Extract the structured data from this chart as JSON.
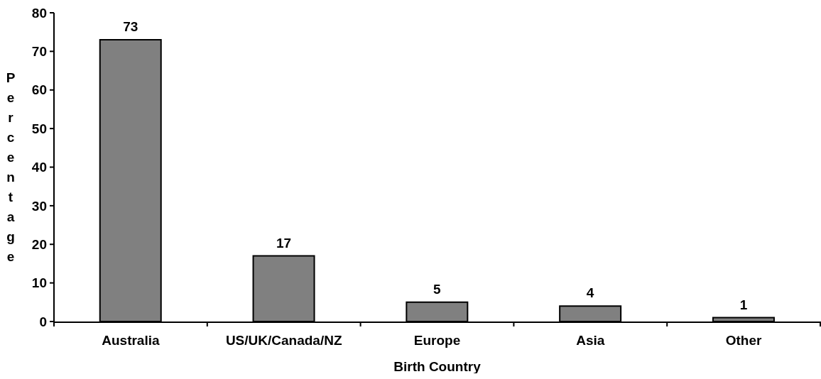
{
  "chart_data": {
    "type": "bar",
    "xlabel": "Birth Country",
    "ylabel": "Percentage",
    "categories": [
      "Australia",
      "US/UK/Canada/NZ",
      "Europe",
      "Asia",
      "Other"
    ],
    "values": [
      73,
      17,
      5,
      4,
      1
    ],
    "color": "#808080",
    "ylim": [
      0,
      80
    ],
    "yticks": [
      0,
      10,
      20,
      30,
      40,
      50,
      60,
      70,
      80
    ],
    "data_labels": true
  }
}
